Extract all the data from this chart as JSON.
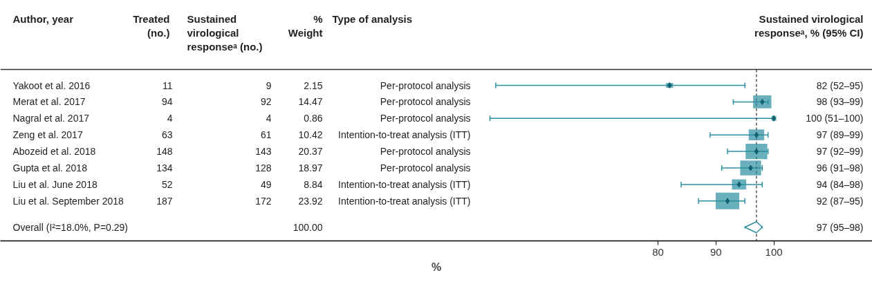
{
  "chart_data": {
    "type": "bubble",
    "orientation": "horizontal",
    "ylabel": "Author, year",
    "xlabel": "%",
    "categories": [
      "Yakoot et al. 2016",
      "Merat et al. 2017",
      "Nagral et al. 2017",
      "Zeng et al. 2017",
      "Abozeid et al. 2018",
      "Gupta et al. 2018",
      "Liu et al. June 2018",
      "Liu et al. September 2018",
      "Overall (I²=18.0%, P=0.29)"
    ],
    "xlim": [
      -33.5,
      117
    ],
    "xticks": [
      80,
      90,
      100
    ],
    "grid": false,
    "series": [
      {
        "marker": "square",
        "color": "#2b8fa0",
        "values": [
          82,
          98,
          100,
          97,
          97,
          96,
          94,
          92,
          null
        ],
        "errors": [
          [
            52,
            95
          ],
          [
            93,
            99
          ],
          [
            51,
            100
          ],
          [
            89,
            99
          ],
          [
            92,
            99
          ],
          [
            91,
            98
          ],
          [
            84,
            98
          ],
          [
            87,
            95
          ],
          null
        ],
        "sizes": [
          0.09,
          0.605,
          0.036,
          0.436,
          0.852,
          0.793,
          0.37,
          1,
          null
        ]
      },
      {
        "type": "scatter",
        "marker": "diamond",
        "color": "#2b8fa0",
        "values": [
          null,
          null,
          null,
          null,
          null,
          null,
          null,
          null,
          97
        ],
        "errors": [
          null,
          null,
          null,
          null,
          null,
          null,
          null,
          null,
          [
            95,
            98
          ]
        ]
      }
    ],
    "value_labels": [
      "82 (52–95)",
      "98 (93–99)",
      "100 (51–100)",
      "97 (89–99)",
      "97 (92–99)",
      "96 (91–98)",
      "94 (84–98)",
      "92 (87–95)",
      "97 (95–98)"
    ],
    "ref_lines": [
      {
        "axis": "x",
        "value": 97,
        "color": "#000000",
        "line_style": "dashed"
      }
    ],
    "annotations": [
      "Treated\n(no.)",
      "Sustained\nvirological\nresponseᵃ (no.)",
      "%\nWeight",
      "Type of analysis",
      "Sustained virological\nresponseᵃ, % (95% CI)",
      "11",
      "9",
      "2.15",
      "Per-protocol analysis",
      "94",
      "92",
      "14.47",
      "Per-protocol analysis",
      "4",
      "4",
      "0.86",
      "Per-protocol analysis",
      "63",
      "61",
      "10.42",
      "Intention-to-treat analysis (ITT)",
      "148",
      "143",
      "20.37",
      "Per-protocol analysis",
      "134",
      "128",
      "18.97",
      "Per-protocol analysis",
      "52",
      "49",
      "8.84",
      "Intention-to-treat analysis (ITT)",
      "187",
      "172",
      "23.92",
      "Intention-to-treat analysis (ITT)",
      "100.00"
    ]
  }
}
